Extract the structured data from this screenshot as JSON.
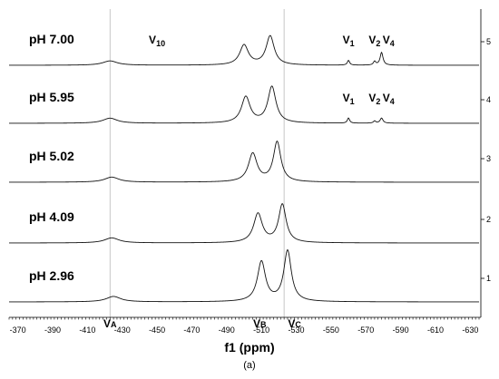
{
  "chart_data": {
    "type": "line",
    "xlabel": "f1 (ppm)",
    "caption": "(a)",
    "x_axis": {
      "reversed": true,
      "xlim": [
        -365,
        -635
      ],
      "ticks": [
        -370,
        -390,
        -410,
        -430,
        -450,
        -470,
        -490,
        -510,
        -530,
        -550,
        -570,
        -590,
        -610,
        -630
      ],
      "tick_labels": [
        "-370",
        "-390",
        "-410",
        "-430",
        "-450",
        "-470",
        "-490",
        "-510",
        "-530",
        "-550",
        "-570",
        "-590",
        "-610",
        "-630"
      ]
    },
    "right_axis": {
      "ticks": [
        "1",
        "2",
        "3",
        "4",
        "5"
      ]
    },
    "reference_lines_ppm": [
      -423,
      -523
    ],
    "series": [
      {
        "index": "5",
        "label": "pH 7.00",
        "peaks": [
          {
            "ppm": -423,
            "height": 0.12,
            "width": 5
          },
          {
            "ppm": -500,
            "height": 0.55,
            "width": 3
          },
          {
            "ppm": -515,
            "height": 0.8,
            "width": 2.8
          },
          {
            "ppm": -560,
            "height": 0.13,
            "width": 0.8
          },
          {
            "ppm": -575,
            "height": 0.1,
            "width": 0.8
          },
          {
            "ppm": -579,
            "height": 0.35,
            "width": 1
          }
        ]
      },
      {
        "index": "4",
        "label": "pH 5.95",
        "peaks": [
          {
            "ppm": -423,
            "height": 0.14,
            "width": 5
          },
          {
            "ppm": -501,
            "height": 0.72,
            "width": 3
          },
          {
            "ppm": -516,
            "height": 1.0,
            "width": 2.8
          },
          {
            "ppm": -560,
            "height": 0.14,
            "width": 0.8
          },
          {
            "ppm": -575,
            "height": 0.06,
            "width": 0.8
          },
          {
            "ppm": -579,
            "height": 0.14,
            "width": 1
          }
        ]
      },
      {
        "index": "3",
        "label": "pH 5.02",
        "peaks": [
          {
            "ppm": -424,
            "height": 0.14,
            "width": 5
          },
          {
            "ppm": -505,
            "height": 0.78,
            "width": 3
          },
          {
            "ppm": -519,
            "height": 1.1,
            "width": 2.6
          }
        ]
      },
      {
        "index": "2",
        "label": "pH 4.09",
        "peaks": [
          {
            "ppm": -424,
            "height": 0.14,
            "width": 5
          },
          {
            "ppm": -508,
            "height": 0.8,
            "width": 3
          },
          {
            "ppm": -522,
            "height": 1.05,
            "width": 2.6
          }
        ]
      },
      {
        "index": "1",
        "label": "pH 2.96",
        "peaks": [
          {
            "ppm": -425,
            "height": 0.15,
            "width": 5
          },
          {
            "ppm": -510,
            "height": 1.1,
            "width": 2.8
          },
          {
            "ppm": -525,
            "height": 1.4,
            "width": 2.6
          }
        ]
      }
    ],
    "annotations": [
      {
        "id": "v10",
        "base": "V",
        "sub": "10",
        "series": "5",
        "ppm": -450
      },
      {
        "id": "v1-top",
        "base": "V",
        "sub": "1",
        "series": "5",
        "ppm": -560
      },
      {
        "id": "v2-top",
        "base": "V",
        "sub": "2",
        "series": "5",
        "ppm": -575
      },
      {
        "id": "v4-top",
        "base": "V",
        "sub": "4",
        "series": "5",
        "ppm": -583
      },
      {
        "id": "v1-mid",
        "base": "V",
        "sub": "1",
        "series": "4",
        "ppm": -560
      },
      {
        "id": "v2-mid",
        "base": "V",
        "sub": "2",
        "series": "4",
        "ppm": -575
      },
      {
        "id": "v4-mid",
        "base": "V",
        "sub": "4",
        "series": "4",
        "ppm": -583
      },
      {
        "id": "va",
        "base": "V",
        "sub": "A",
        "series": "axis",
        "ppm": -423
      },
      {
        "id": "vb",
        "base": "V",
        "sub": "B",
        "series": "axis",
        "ppm": -509
      },
      {
        "id": "vc",
        "base": "V",
        "sub": "C",
        "series": "axis",
        "ppm": -529
      }
    ]
  }
}
